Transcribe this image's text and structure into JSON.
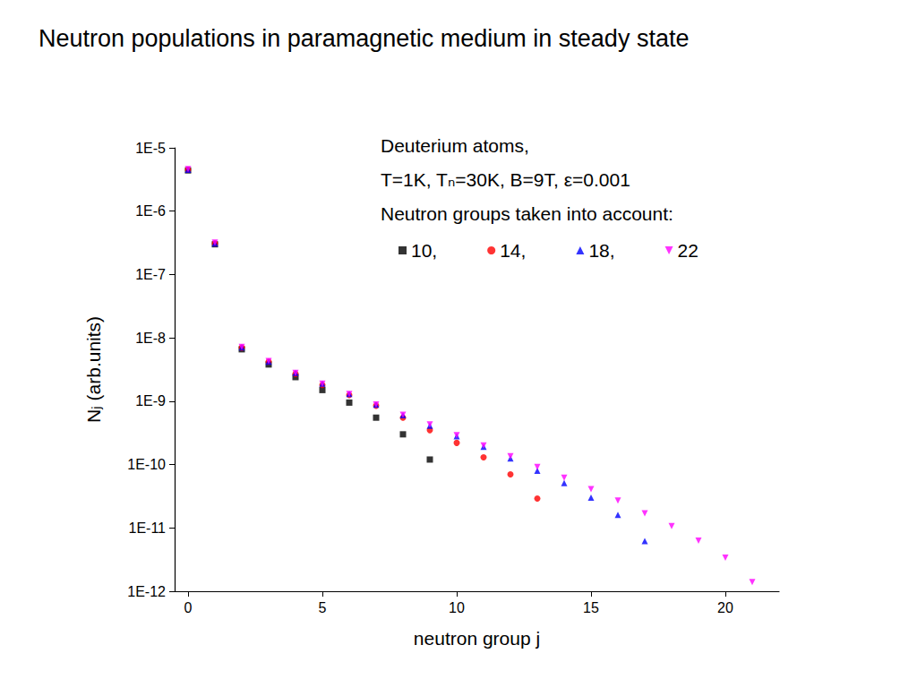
{
  "chart_data": {
    "type": "scatter",
    "title": "Neutron populations in paramagnetic medium in steady state",
    "annotations": [
      "Deuterium atoms,",
      "T=1K, Tₙ=30K, B=9T, ε=0.001",
      "Neutron groups taken into account:"
    ],
    "x_label": "neutron group j",
    "y_label": "Nⱼ (arb.units)",
    "log": "y",
    "grid": false,
    "legend": "top-right",
    "xlim": [
      -0.5,
      22
    ],
    "xticks": [
      0,
      5,
      10,
      15,
      20
    ],
    "ylim": [
      1e-12,
      1e-05
    ],
    "yticks": [
      {
        "value": 1e-12,
        "label": "1E-12"
      },
      {
        "value": 1e-11,
        "label": "1E-11"
      },
      {
        "value": 1e-10,
        "label": "1E-10"
      },
      {
        "value": 1e-09,
        "label": "1E-9"
      },
      {
        "value": 1e-08,
        "label": "1E-8"
      },
      {
        "value": 1e-07,
        "label": "1E-7"
      },
      {
        "value": 1e-06,
        "label": "1E-6"
      },
      {
        "value": 1e-05,
        "label": "1E-5"
      }
    ],
    "series": [
      {
        "name": "10,",
        "color": "#000000",
        "marker": "square",
        "x": [
          0,
          1,
          2,
          3,
          4,
          5,
          6,
          7,
          8,
          9
        ],
        "values": [
          4.4e-06,
          3e-07,
          6.6e-09,
          3.8e-09,
          2.4e-09,
          1.5e-09,
          9.5e-10,
          5.5e-10,
          3e-10,
          1.2e-10
        ]
      },
      {
        "name": "14,",
        "color": "#ff0000",
        "marker": "circle",
        "x": [
          0,
          1,
          2,
          3,
          4,
          5,
          6,
          7,
          8,
          9,
          10,
          11,
          12,
          13
        ],
        "values": [
          4.5e-06,
          3.1e-07,
          7e-09,
          4.2e-09,
          2.7e-09,
          1.8e-09,
          1.25e-09,
          8.5e-10,
          5.5e-10,
          3.5e-10,
          2.2e-10,
          1.3e-10,
          7e-11,
          2.9e-11
        ]
      },
      {
        "name": "18,",
        "color": "#0000ff",
        "marker": "triangle-up",
        "x": [
          0,
          1,
          2,
          3,
          4,
          5,
          6,
          7,
          8,
          9,
          10,
          11,
          12,
          13,
          14,
          15,
          16,
          17
        ],
        "values": [
          4.5e-06,
          3.1e-07,
          7.1e-09,
          4.2e-09,
          2.8e-09,
          1.9e-09,
          1.3e-09,
          8.8e-10,
          6e-10,
          4.1e-10,
          2.8e-10,
          1.9e-10,
          1.25e-10,
          8e-11,
          5.1e-11,
          3e-11,
          1.6e-11,
          6.2e-12
        ]
      },
      {
        "name": "22",
        "color": "#ff00ff",
        "marker": "triangle-down",
        "x": [
          0,
          1,
          2,
          3,
          4,
          5,
          6,
          7,
          8,
          9,
          10,
          11,
          12,
          13,
          14,
          15,
          16,
          17,
          18,
          19,
          20,
          21
        ],
        "values": [
          4.6e-06,
          3.2e-07,
          7.2e-09,
          4.3e-09,
          2.8e-09,
          1.9e-09,
          1.3e-09,
          8.9e-10,
          6.1e-10,
          4.3e-10,
          2.9e-10,
          2e-10,
          1.35e-10,
          9.2e-11,
          6.2e-11,
          4.1e-11,
          2.7e-11,
          1.7e-11,
          1.07e-11,
          6.3e-12,
          3.4e-12,
          1.4e-12
        ]
      }
    ]
  }
}
